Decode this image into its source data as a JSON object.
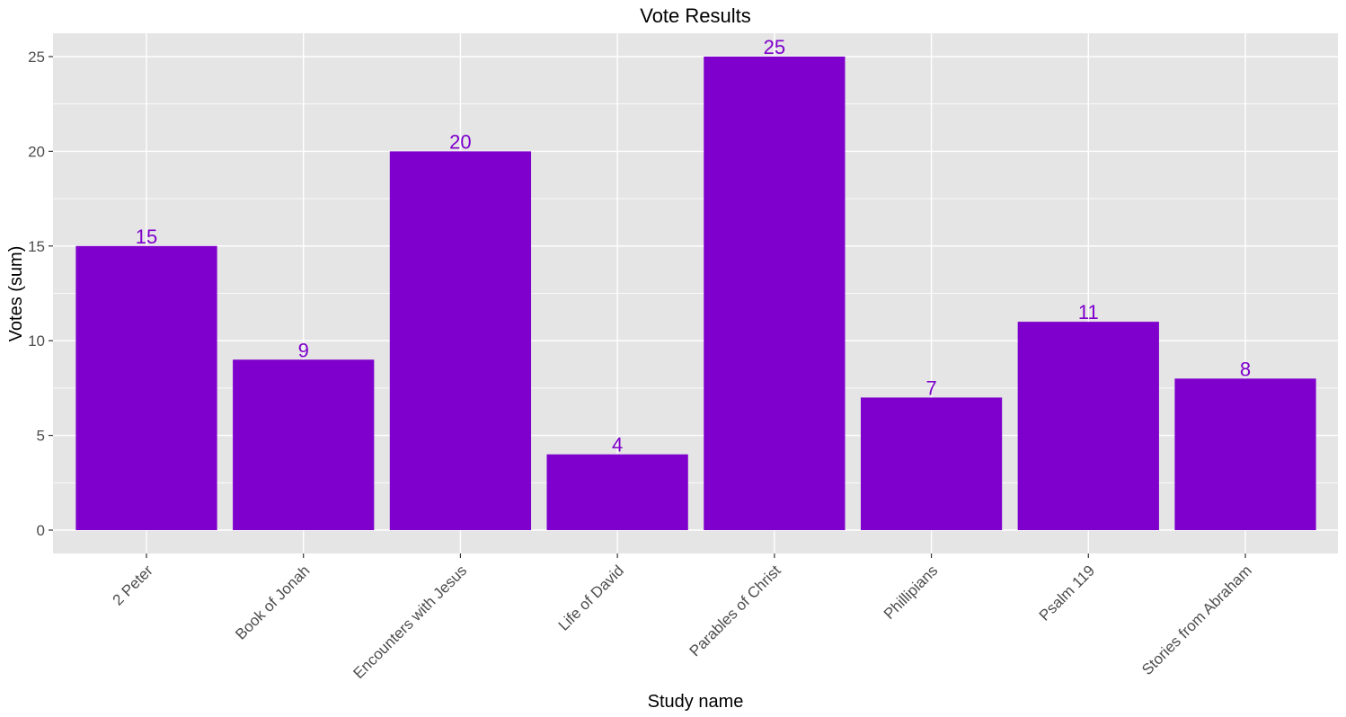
{
  "chart_data": {
    "type": "bar",
    "title": "Vote Results",
    "xlabel": "Study name",
    "ylabel": "Votes (sum)",
    "categories": [
      "2 Peter",
      "Book of Jonah",
      "Encounters with Jesus",
      "Life of David",
      "Parables of Christ",
      "Phillipians",
      "Psalm 119",
      "Stories from Abraham"
    ],
    "values": [
      15,
      9,
      20,
      4,
      25,
      7,
      11,
      8
    ],
    "ylim": [
      0,
      26.25
    ],
    "yticks": [
      0,
      5,
      10,
      15,
      20,
      25
    ],
    "ytick_labels": [
      "0",
      "5",
      "10",
      "15",
      "20",
      "25"
    ],
    "grid": true,
    "colors": {
      "bar": "#7f00cc",
      "label": "#7f00cc",
      "panel": "#e5e5e5",
      "grid": "#ffffff"
    }
  }
}
